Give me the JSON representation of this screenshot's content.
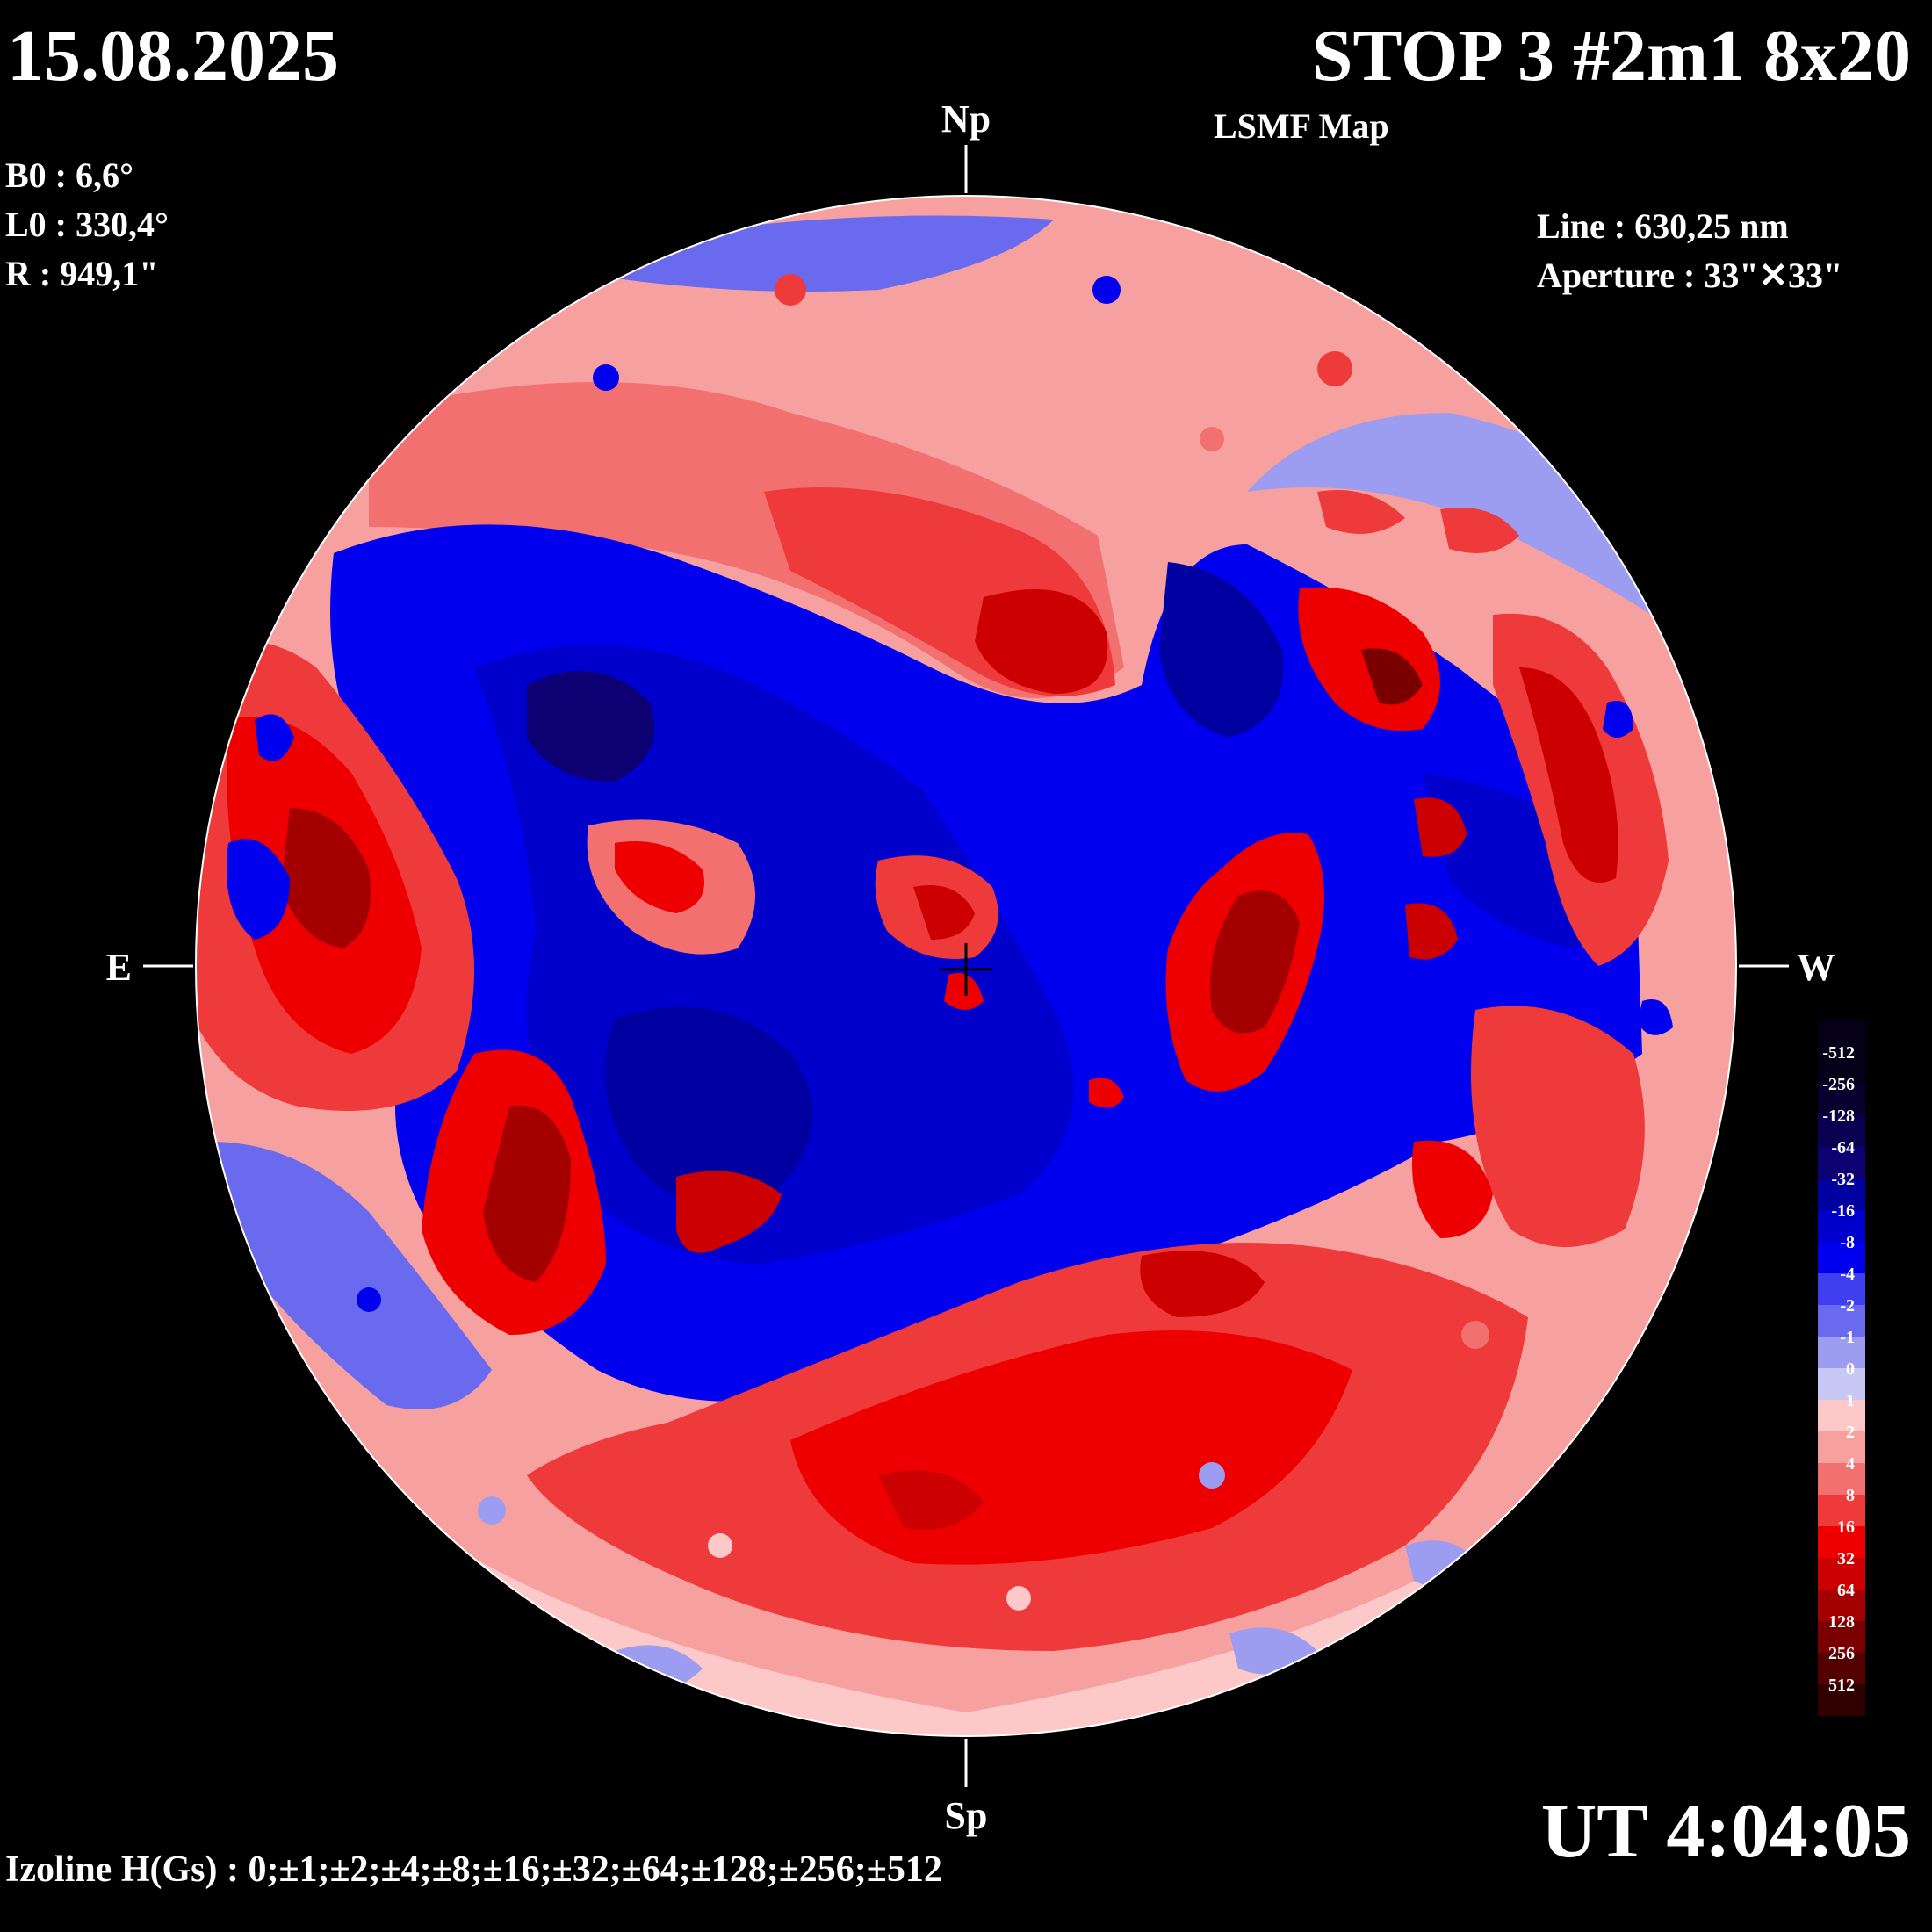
{
  "header": {
    "date": "15.08.2025",
    "title": "STOP 3 #2m1 8x20",
    "subtitle": "LSMF  Map"
  },
  "params": {
    "b0": "B0 : 6,6°",
    "l0": "L0 : 330,4°",
    "r": "R  : 949,1\""
  },
  "instrument": {
    "line": "Line :  630,25 nm",
    "aperture": "Aperture : 33\"✕33\""
  },
  "directions": {
    "north": "Np",
    "south": "Sp",
    "east": "E",
    "west": "W"
  },
  "time": "UT 4:04:05",
  "izoline": "Izoline H(Gs) : 0;±1;±2;±4;±8;±16;±32;±64;±128;±256;±512",
  "legend": {
    "levels": [
      "-512",
      "-256",
      "-128",
      "-64",
      "-32",
      "-16",
      "-8",
      "-4",
      "-2",
      "-1",
      "0",
      "1",
      "2",
      "4",
      "8",
      "16",
      "32",
      "64",
      "128",
      "256",
      "512"
    ],
    "colors": [
      "#050018",
      "#07002e",
      "#0a0050",
      "#0c0073",
      "#0000a0",
      "#0000cc",
      "#0000ee",
      "#3f3ff0",
      "#6a6aee",
      "#9c9cf0",
      "#c8c8f5",
      "#fcc8c8",
      "#f7a0a0",
      "#f27070",
      "#ee3a3a",
      "#ee0000",
      "#cc0000",
      "#a40000",
      "#7a0000",
      "#520000",
      "#300000"
    ]
  },
  "colors": {
    "background": "#000000",
    "strong_negative": "#0000cc",
    "weak_negative": "#9c9cf0",
    "weak_positive": "#f7a0a0",
    "strong_positive": "#ee0000",
    "zero_isoline": "#ffffff"
  }
}
